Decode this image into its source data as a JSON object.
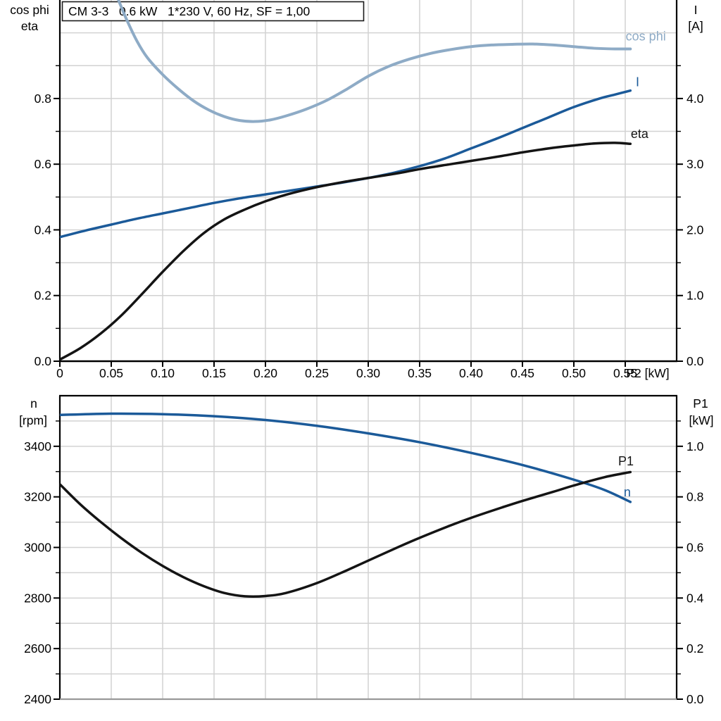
{
  "colors": {
    "light_blue": "#8EABC6",
    "dark_blue": "#1B5A99",
    "curve_black": "#141414",
    "grid": "#D2D2D2",
    "axis": "#000000",
    "bottom_axis_gray": "#999999",
    "text": "#000000",
    "background": "#FFFFFF",
    "box_border": "#1A1A1A"
  },
  "chart_data": [
    {
      "type": "line",
      "title": "CM 3-3   0.6 kW   1*230 V, 60 Hz, SF = 1,00",
      "x_axis": {
        "label": "P2 [kW]",
        "range": [
          0,
          0.6
        ],
        "tick_values": [
          0,
          0.05,
          0.1,
          0.15,
          0.2,
          0.25,
          0.3,
          0.35,
          0.4,
          0.45,
          0.5,
          0.55
        ],
        "tick_labels": [
          "0",
          "0.05",
          "0.10",
          "0.15",
          "0.20",
          "0.25",
          "0.30",
          "0.35",
          "0.40",
          "0.45",
          "0.50",
          "0.55"
        ],
        "grid_values": [
          0.05,
          0.1,
          0.15,
          0.2,
          0.25,
          0.3,
          0.35,
          0.4,
          0.45,
          0.5,
          0.55
        ]
      },
      "y_left": {
        "title_lines": [
          "cos phi",
          "eta"
        ],
        "title_colors": [
          "text",
          "text"
        ],
        "range": [
          0,
          1.1
        ],
        "tick_values": [
          0,
          0.2,
          0.4,
          0.6,
          0.8
        ],
        "tick_labels": [
          "0.0",
          "0.2",
          "0.4",
          "0.6",
          "0.8"
        ],
        "minor_tick_values": [
          0.1,
          0.3,
          0.5,
          0.7,
          0.9
        ],
        "grid_values": [
          0.1,
          0.2,
          0.3,
          0.4,
          0.5,
          0.6,
          0.7,
          0.8,
          0.9,
          1.0
        ]
      },
      "y_right": {
        "title_lines": [
          "I",
          "[A]"
        ],
        "title_colors": [
          "dark_blue",
          "text"
        ],
        "range": [
          0,
          5.5
        ],
        "tick_values": [
          0,
          1,
          2,
          3,
          4
        ],
        "tick_labels": [
          "0.0",
          "1.0",
          "2.0",
          "3.0",
          "4.0"
        ],
        "minor_tick_values": [
          0.5,
          1.5,
          2.5,
          3.5,
          4.5
        ]
      },
      "series": [
        {
          "name": "cos phi",
          "color": "light_blue",
          "axis": "left",
          "label_at": {
            "x": 0.57,
            "y": 0.99
          },
          "points": [
            [
              0.057,
              1.1
            ],
            [
              0.065,
              1.04
            ],
            [
              0.075,
              0.975
            ],
            [
              0.085,
              0.925
            ],
            [
              0.1,
              0.873
            ],
            [
              0.115,
              0.83
            ],
            [
              0.13,
              0.793
            ],
            [
              0.145,
              0.765
            ],
            [
              0.16,
              0.745
            ],
            [
              0.175,
              0.733
            ],
            [
              0.19,
              0.73
            ],
            [
              0.205,
              0.735
            ],
            [
              0.22,
              0.747
            ],
            [
              0.24,
              0.768
            ],
            [
              0.26,
              0.795
            ],
            [
              0.28,
              0.83
            ],
            [
              0.3,
              0.868
            ],
            [
              0.32,
              0.898
            ],
            [
              0.34,
              0.92
            ],
            [
              0.36,
              0.937
            ],
            [
              0.38,
              0.949
            ],
            [
              0.4,
              0.958
            ],
            [
              0.42,
              0.963
            ],
            [
              0.44,
              0.965
            ],
            [
              0.46,
              0.966
            ],
            [
              0.48,
              0.963
            ],
            [
              0.5,
              0.958
            ],
            [
              0.52,
              0.953
            ],
            [
              0.54,
              0.951
            ],
            [
              0.555,
              0.951
            ]
          ]
        },
        {
          "name": "I",
          "color": "dark_blue",
          "axis": "right",
          "label_at": {
            "x": 0.562,
            "y": 4.25
          },
          "points": [
            [
              0,
              1.89
            ],
            [
              0.025,
              1.99
            ],
            [
              0.05,
              2.08
            ],
            [
              0.075,
              2.17
            ],
            [
              0.1,
              2.25
            ],
            [
              0.125,
              2.33
            ],
            [
              0.15,
              2.41
            ],
            [
              0.175,
              2.48
            ],
            [
              0.2,
              2.54
            ],
            [
              0.225,
              2.6
            ],
            [
              0.25,
              2.66
            ],
            [
              0.275,
              2.72
            ],
            [
              0.3,
              2.79
            ],
            [
              0.325,
              2.87
            ],
            [
              0.35,
              2.97
            ],
            [
              0.375,
              3.09
            ],
            [
              0.4,
              3.24
            ],
            [
              0.425,
              3.39
            ],
            [
              0.45,
              3.55
            ],
            [
              0.475,
              3.71
            ],
            [
              0.5,
              3.87
            ],
            [
              0.525,
              4.0
            ],
            [
              0.54,
              4.06
            ],
            [
              0.555,
              4.12
            ]
          ]
        },
        {
          "name": "eta",
          "color": "curve_black",
          "axis": "left",
          "label_at": {
            "x": 0.564,
            "y": 0.693
          },
          "points": [
            [
              0,
              0.005
            ],
            [
              0.02,
              0.04
            ],
            [
              0.04,
              0.085
            ],
            [
              0.06,
              0.14
            ],
            [
              0.08,
              0.205
            ],
            [
              0.1,
              0.272
            ],
            [
              0.12,
              0.335
            ],
            [
              0.14,
              0.39
            ],
            [
              0.16,
              0.432
            ],
            [
              0.18,
              0.462
            ],
            [
              0.2,
              0.487
            ],
            [
              0.22,
              0.507
            ],
            [
              0.25,
              0.53
            ],
            [
              0.28,
              0.548
            ],
            [
              0.3,
              0.558
            ],
            [
              0.33,
              0.573
            ],
            [
              0.35,
              0.585
            ],
            [
              0.38,
              0.6
            ],
            [
              0.4,
              0.61
            ],
            [
              0.43,
              0.625
            ],
            [
              0.45,
              0.636
            ],
            [
              0.48,
              0.65
            ],
            [
              0.5,
              0.657
            ],
            [
              0.52,
              0.663
            ],
            [
              0.54,
              0.665
            ],
            [
              0.555,
              0.662
            ]
          ]
        }
      ]
    },
    {
      "type": "line",
      "x_axis": {
        "range": [
          0,
          0.6
        ],
        "tick_values": [],
        "tick_labels": [],
        "grid_values": [
          0.05,
          0.1,
          0.15,
          0.2,
          0.25,
          0.3,
          0.35,
          0.4,
          0.45,
          0.5,
          0.55
        ]
      },
      "y_left": {
        "title_lines": [
          "n",
          "[rpm]"
        ],
        "title_colors": [
          "text",
          "text"
        ],
        "range": [
          2400,
          3600
        ],
        "tick_values": [
          2400,
          2600,
          2800,
          3000,
          3200,
          3400
        ],
        "tick_labels": [
          "2400",
          "2600",
          "2800",
          "3000",
          "3200",
          "3400"
        ],
        "minor_tick_values": [
          2500,
          2700,
          2900,
          3100,
          3300,
          3500
        ],
        "grid_values": [
          2500,
          2600,
          2700,
          2800,
          2900,
          3000,
          3100,
          3200,
          3300,
          3400,
          3500
        ]
      },
      "y_right": {
        "title_lines": [
          "P1",
          "[kW]"
        ],
        "title_colors": [
          "text",
          "text"
        ],
        "range": [
          0,
          1.2
        ],
        "tick_values": [
          0,
          0.2,
          0.4,
          0.6,
          0.8,
          1.0
        ],
        "tick_labels": [
          "0.0",
          "0.2",
          "0.4",
          "0.6",
          "0.8",
          "1.0"
        ],
        "minor_tick_values": [
          0.1,
          0.3,
          0.5,
          0.7,
          0.9,
          1.1
        ]
      },
      "series": [
        {
          "name": "n",
          "color": "dark_blue",
          "axis": "left",
          "label_at": {
            "x": 0.552,
            "y": 3219
          },
          "points": [
            [
              0,
              3524
            ],
            [
              0.05,
              3529
            ],
            [
              0.1,
              3527
            ],
            [
              0.15,
              3519
            ],
            [
              0.2,
              3504
            ],
            [
              0.25,
              3481
            ],
            [
              0.3,
              3451
            ],
            [
              0.35,
              3416
            ],
            [
              0.4,
              3374
            ],
            [
              0.45,
              3326
            ],
            [
              0.5,
              3268
            ],
            [
              0.53,
              3227
            ],
            [
              0.555,
              3180
            ]
          ]
        },
        {
          "name": "P1",
          "color": "curve_black",
          "axis": "right",
          "label_at": {
            "x": 0.5507,
            "y": 0.941
          },
          "points": [
            [
              0,
              0.85
            ],
            [
              0.02,
              0.77
            ],
            [
              0.04,
              0.7
            ],
            [
              0.06,
              0.636
            ],
            [
              0.08,
              0.578
            ],
            [
              0.1,
              0.527
            ],
            [
              0.12,
              0.483
            ],
            [
              0.14,
              0.447
            ],
            [
              0.16,
              0.42
            ],
            [
              0.18,
              0.407
            ],
            [
              0.2,
              0.408
            ],
            [
              0.22,
              0.42
            ],
            [
              0.25,
              0.459
            ],
            [
              0.28,
              0.511
            ],
            [
              0.3,
              0.548
            ],
            [
              0.33,
              0.603
            ],
            [
              0.35,
              0.638
            ],
            [
              0.38,
              0.687
            ],
            [
              0.4,
              0.717
            ],
            [
              0.43,
              0.758
            ],
            [
              0.45,
              0.784
            ],
            [
              0.48,
              0.82
            ],
            [
              0.5,
              0.845
            ],
            [
              0.53,
              0.878
            ],
            [
              0.555,
              0.898
            ]
          ]
        }
      ]
    }
  ]
}
